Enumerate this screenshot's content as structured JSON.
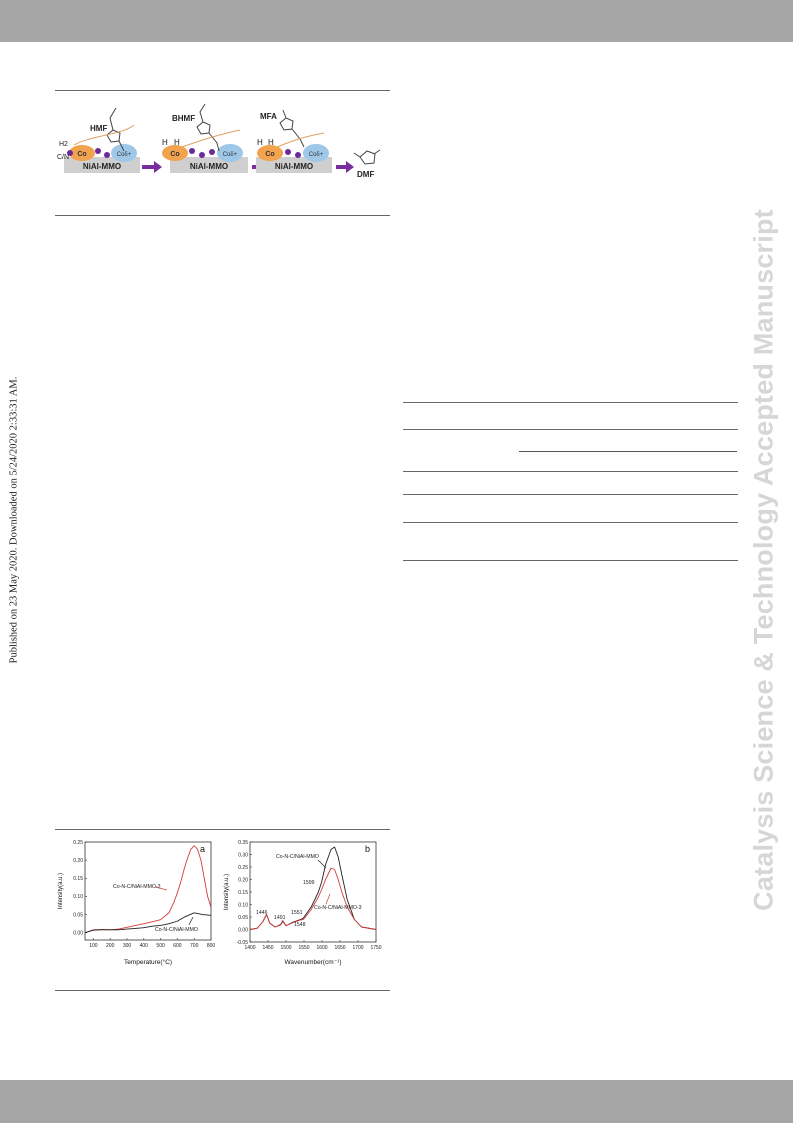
{
  "watermark": "Catalysis Science & Technology Accepted Manuscript",
  "published_note": "Published on 23 May 2020. Downloaded on 5/24/2020 2:33:31 AM.",
  "scheme": {
    "molecules": [
      "HMF",
      "BHMF",
      "MFA",
      "DMF"
    ],
    "support_label": "NiAl-MMO",
    "co_label": "Co",
    "co_delta": "Coδ+",
    "h2": "H2",
    "cn": "C/N",
    "h": "H"
  },
  "colors": {
    "red_series": "#d23a3a",
    "black_series": "#222222",
    "arrow": "#7b2c9e",
    "purple_dot": "#6a2a9a",
    "co_orange": "#f3a24e",
    "co_blue": "#9fc8e8",
    "support": "#cfcfcf",
    "header_bar": "#a6a6a6"
  },
  "chart_data": [
    {
      "type": "line",
      "panel_label": "a",
      "xlabel": "Temperature(°C)",
      "ylabel": "Intensity(a.u.)",
      "xlim": [
        50,
        800
      ],
      "ylim": [
        -0.02,
        0.25
      ],
      "xticks": [
        100,
        200,
        300,
        400,
        500,
        600,
        700,
        800
      ],
      "yticks": [
        0.0,
        0.05,
        0.1,
        0.15,
        0.2,
        0.25
      ],
      "series": [
        {
          "name": "Co-N-C/NiAl-MMO-3",
          "color": "#d23a3a",
          "x": [
            50,
            100,
            150,
            200,
            250,
            300,
            350,
            400,
            450,
            500,
            550,
            580,
            600,
            620,
            640,
            660,
            680,
            700,
            720,
            740,
            760,
            780,
            800
          ],
          "y": [
            0.0,
            0.008,
            0.009,
            0.008,
            0.01,
            0.015,
            0.02,
            0.025,
            0.03,
            0.036,
            0.055,
            0.085,
            0.11,
            0.14,
            0.175,
            0.205,
            0.23,
            0.24,
            0.23,
            0.2,
            0.15,
            0.1,
            0.07
          ]
        },
        {
          "name": "Co-N-C/NiAl-MMO",
          "color": "#222222",
          "x": [
            50,
            100,
            150,
            200,
            250,
            300,
            350,
            400,
            450,
            500,
            550,
            600,
            650,
            700,
            750,
            800
          ],
          "y": [
            0.0,
            0.007,
            0.008,
            0.008,
            0.008,
            0.01,
            0.012,
            0.014,
            0.018,
            0.02,
            0.025,
            0.032,
            0.045,
            0.055,
            0.05,
            0.048
          ]
        }
      ],
      "annotations": [
        "Co-N-C/NiAl-MMO-3",
        "Co-N-C/NiAl-MMO"
      ]
    },
    {
      "type": "line",
      "panel_label": "b",
      "xlabel": "Wavenumber(cm⁻¹)",
      "ylabel": "Intensity(a.u.)",
      "xlim": [
        1400,
        1750
      ],
      "ylim": [
        -0.05,
        0.35
      ],
      "xticks": [
        1400,
        1450,
        1500,
        1550,
        1600,
        1650,
        1700,
        1750
      ],
      "yticks": [
        -0.05,
        0.0,
        0.05,
        0.1,
        0.15,
        0.2,
        0.25,
        0.3,
        0.35
      ],
      "series": [
        {
          "name": "Co-N-C/NiAl-MMO",
          "color": "#222222",
          "x": [
            1400,
            1420,
            1435,
            1446,
            1455,
            1470,
            1485,
            1491,
            1500,
            1520,
            1540,
            1548,
            1555,
            1570,
            1590,
            1599,
            1610,
            1625,
            1635,
            1645,
            1655,
            1670,
            1690,
            1710,
            1750
          ],
          "y": [
            0.0,
            0.005,
            0.03,
            0.06,
            0.025,
            0.01,
            0.02,
            0.035,
            0.015,
            0.03,
            0.04,
            0.045,
            0.06,
            0.09,
            0.15,
            0.19,
            0.26,
            0.32,
            0.33,
            0.29,
            0.22,
            0.12,
            0.04,
            0.01,
            0.0
          ]
        },
        {
          "name": "Co-N-C/NiAl-MMO-3",
          "color": "#d23a3a",
          "x": [
            1400,
            1420,
            1435,
            1446,
            1455,
            1470,
            1485,
            1491,
            1500,
            1520,
            1540,
            1548,
            1555,
            1570,
            1590,
            1599,
            1610,
            1625,
            1635,
            1645,
            1655,
            1670,
            1690,
            1710,
            1750
          ],
          "y": [
            0.0,
            0.005,
            0.03,
            0.06,
            0.025,
            0.01,
            0.018,
            0.032,
            0.015,
            0.028,
            0.038,
            0.04,
            0.052,
            0.08,
            0.13,
            0.16,
            0.2,
            0.245,
            0.24,
            0.2,
            0.15,
            0.09,
            0.04,
            0.01,
            0.0
          ]
        }
      ],
      "annotations": [
        "Co-N-C/NiAl-MMO",
        "1599",
        "1446",
        "1491",
        "1551",
        "1548",
        "Co-N-C/NiAl-MMO-3"
      ]
    }
  ]
}
